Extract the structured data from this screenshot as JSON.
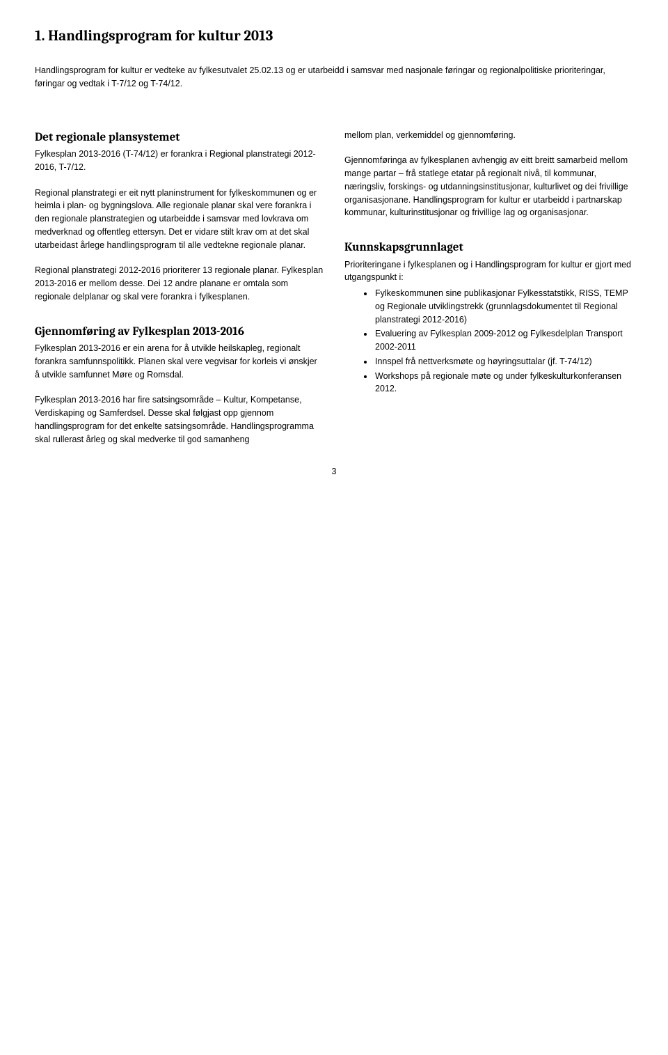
{
  "title": "1. Handlingsprogram for kultur 2013",
  "intro": "Handlingsprogram for kultur er vedteke av fylkesutvalet 25.02.13 og er utarbeidd i samsvar med nasjonale føringar og regionalpolitiske prioriteringar, føringar og vedtak i T-7/12 og T-74/12.",
  "left": {
    "h1": "Det regionale plansystemet",
    "p1": "Fylkesplan 2013-2016 (T-74/12) er forankra i Regional planstrategi 2012-2016, T-7/12.",
    "p2": "Regional planstrategi er eit nytt planinstrument for fylkeskommunen og er heimla i plan- og bygningslova. Alle regionale planar skal vere forankra i den regionale planstrategien og utarbeidde i samsvar med lovkrava om medverknad og offentleg ettersyn. Det er vidare stilt krav om at det skal utarbeidast årlege handlingsprogram til alle vedtekne regionale planar.",
    "p3": "Regional planstrategi 2012-2016 prioriterer 13 regionale planar. Fylkesplan 2013-2016 er mellom desse. Dei 12 andre planane er omtala som regionale delplanar og skal vere forankra i fylkesplanen.",
    "h2": "Gjennomføring av Fylkesplan 2013-2016",
    "p4": "Fylkesplan 2013-2016 er ein arena for å utvikle heilskapleg, regionalt forankra samfunnspolitikk. Planen skal vere vegvisar for korleis vi ønskjer å utvikle samfunnet Møre og Romsdal.",
    "p5": "Fylkesplan 2013-2016 har fire satsingsområde – Kultur, Kompetanse, Verdiskaping og Samferdsel. Desse skal følgjast opp gjennom handlingsprogram for det enkelte satsingsområde. Handlingsprogramma skal rullerast årleg og skal medverke til god samanheng"
  },
  "right": {
    "p1": "mellom plan, verkemiddel og gjennomføring.",
    "p2": "Gjennomføringa av fylkesplanen avhengig av eitt breitt samarbeid mellom mange partar – frå statlege etatar på regionalt nivå, til kommunar, næringsliv, forskings- og utdanningsinstitusjonar, kulturlivet og dei frivillige organisasjonane. Handlingsprogram for kultur er utarbeidd i partnarskap kommunar, kulturinstitusjonar og frivillige lag og organisasjonar.",
    "h1": "Kunnskapsgrunnlaget",
    "p3": "Prioriteringane i fylkesplanen og i Handlingsprogram for kultur er gjort med utgangspunkt i:",
    "bullets": [
      "Fylkeskommunen sine publikasjonar Fylkesstatstikk, RISS, TEMP og Regionale utviklingstrekk (grunnlagsdokumentet til Regional planstrategi 2012-2016)",
      "Evaluering av Fylkesplan 2009-2012 og Fylkesdelplan Transport 2002-2011",
      "Innspel frå nettverksmøte og høyringsuttalar (jf. T-74/12)",
      "Workshops på regionale møte og under fylkeskulturkonferansen 2012."
    ]
  },
  "pageNumber": "3"
}
